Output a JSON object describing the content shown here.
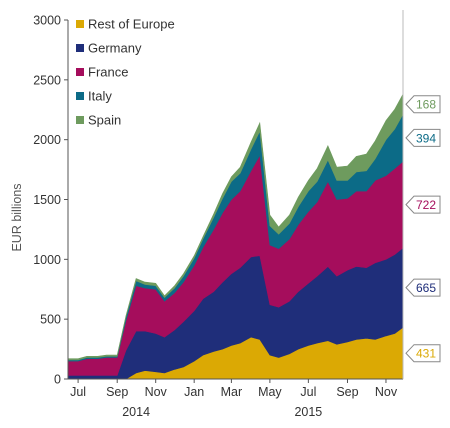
{
  "chart_data": {
    "type": "area",
    "stacked": true,
    "ylabel": "EUR billions",
    "ylim": [
      0,
      3000
    ],
    "yticks": [
      0,
      500,
      1000,
      1500,
      2000,
      2500,
      3000
    ],
    "x": [
      "2014-06-15",
      "2014-07-01",
      "2014-07-15",
      "2014-08-01",
      "2014-08-15",
      "2014-09-01",
      "2014-09-15",
      "2014-10-01",
      "2014-10-15",
      "2014-11-01",
      "2014-11-15",
      "2014-12-01",
      "2014-12-15",
      "2015-01-01",
      "2015-01-15",
      "2015-02-01",
      "2015-02-15",
      "2015-03-01",
      "2015-03-15",
      "2015-04-01",
      "2015-04-15",
      "2015-05-01",
      "2015-05-15",
      "2015-06-01",
      "2015-06-15",
      "2015-07-01",
      "2015-07-15",
      "2015-08-01",
      "2015-08-15",
      "2015-09-01",
      "2015-09-15",
      "2015-10-01",
      "2015-10-15",
      "2015-11-01",
      "2015-11-15",
      "2015-11-28"
    ],
    "xlim": [
      "2014-06-15",
      "2015-11-28"
    ],
    "x_ticks": [
      {
        "date": "2014-07-01",
        "label": "Jul"
      },
      {
        "date": "2014-09-01",
        "label": "Sep"
      },
      {
        "date": "2014-11-01",
        "label": "Nov"
      },
      {
        "date": "2015-01-01",
        "label": "Jan"
      },
      {
        "date": "2015-03-01",
        "label": "Mar"
      },
      {
        "date": "2015-05-01",
        "label": "May"
      },
      {
        "date": "2015-07-01",
        "label": "Jul"
      },
      {
        "date": "2015-09-01",
        "label": "Sep"
      },
      {
        "date": "2015-11-01",
        "label": "Nov"
      }
    ],
    "year_labels": [
      {
        "date": "2014-10-01",
        "label": "2014"
      },
      {
        "date": "2015-07-01",
        "label": "2015"
      }
    ],
    "series": [
      {
        "name": "Rest of Europe",
        "color": "#dba904",
        "end_label": "431",
        "values": [
          0,
          0,
          0,
          0,
          0,
          0,
          0,
          50,
          70,
          60,
          50,
          80,
          100,
          150,
          200,
          230,
          250,
          280,
          300,
          350,
          330,
          200,
          180,
          210,
          250,
          280,
          300,
          320,
          290,
          310,
          330,
          340,
          330,
          360,
          380,
          431
        ]
      },
      {
        "name": "Germany",
        "color": "#1f2e7a",
        "end_label": "665",
        "values": [
          30,
          30,
          30,
          30,
          30,
          30,
          240,
          350,
          330,
          320,
          300,
          330,
          380,
          420,
          470,
          500,
          560,
          600,
          630,
          670,
          700,
          420,
          420,
          440,
          480,
          520,
          560,
          620,
          570,
          600,
          610,
          590,
          640,
          640,
          660,
          665
        ]
      },
      {
        "name": "France",
        "color": "#a50d5c",
        "end_label": "722",
        "values": [
          120,
          120,
          140,
          140,
          150,
          150,
          250,
          380,
          360,
          370,
          300,
          310,
          330,
          380,
          430,
          520,
          580,
          620,
          640,
          720,
          840,
          500,
          490,
          520,
          560,
          600,
          620,
          710,
          640,
          600,
          630,
          640,
          690,
          700,
          720,
          722
        ]
      },
      {
        "name": "Italy",
        "color": "#0c6b87",
        "end_label": "394",
        "values": [
          10,
          10,
          10,
          10,
          10,
          10,
          30,
          40,
          30,
          30,
          30,
          40,
          50,
          60,
          70,
          100,
          120,
          150,
          150,
          180,
          200,
          160,
          120,
          130,
          150,
          170,
          170,
          180,
          160,
          150,
          160,
          170,
          180,
          300,
          330,
          394
        ]
      },
      {
        "name": "Spain",
        "color": "#6e9b5e",
        "end_label": "168",
        "values": [
          10,
          10,
          10,
          10,
          10,
          10,
          10,
          20,
          20,
          20,
          15,
          20,
          20,
          20,
          20,
          30,
          40,
          40,
          50,
          60,
          70,
          90,
          60,
          70,
          80,
          90,
          110,
          120,
          110,
          120,
          130,
          140,
          150,
          160,
          165,
          168
        ]
      }
    ],
    "legend_position": "top-left",
    "grid": false
  }
}
